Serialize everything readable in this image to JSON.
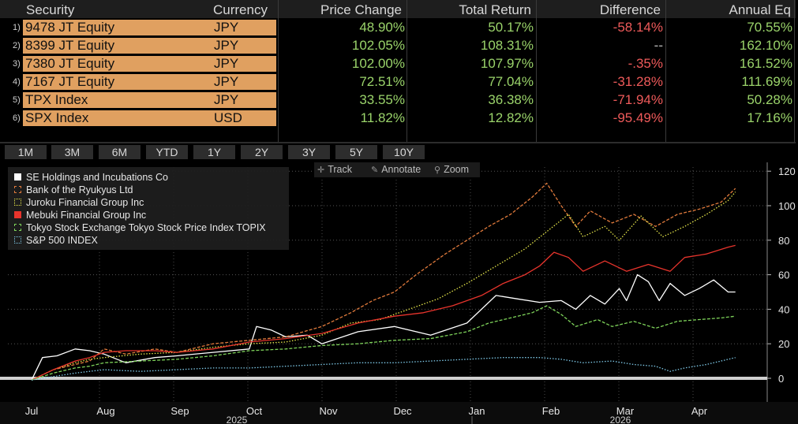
{
  "table": {
    "headers": [
      "Security",
      "Currency",
      "Price Change",
      "Total Return",
      "Difference",
      "Annual Eq"
    ],
    "rows": [
      {
        "num": "1)",
        "security": "9478 JT Equity",
        "currency": "JPY",
        "price_change": "48.90%",
        "total_return": "50.17%",
        "difference": "-58.14%",
        "annual_eq": "70.55%"
      },
      {
        "num": "2)",
        "security": "8399 JT Equity",
        "currency": "JPY",
        "price_change": "102.05%",
        "total_return": "108.31%",
        "difference": "--",
        "annual_eq": "162.10%"
      },
      {
        "num": "3)",
        "security": "7380 JT Equity",
        "currency": "JPY",
        "price_change": "102.00%",
        "total_return": "107.97%",
        "difference": "-.35%",
        "annual_eq": "161.52%"
      },
      {
        "num": "4)",
        "security": "7167 JT Equity",
        "currency": "JPY",
        "price_change": "72.51%",
        "total_return": "77.04%",
        "difference": "-31.28%",
        "annual_eq": "111.69%"
      },
      {
        "num": "5)",
        "security": "TPX Index",
        "currency": "JPY",
        "price_change": "33.55%",
        "total_return": "36.38%",
        "difference": "-71.94%",
        "annual_eq": "50.28%"
      },
      {
        "num": "6)",
        "security": "SPX Index",
        "currency": "USD",
        "price_change": "11.82%",
        "total_return": "12.82%",
        "difference": "-95.49%",
        "annual_eq": "17.16%"
      }
    ]
  },
  "periods": [
    "1M",
    "3M",
    "6M",
    "YTD",
    "1Y",
    "2Y",
    "3Y",
    "5Y",
    "10Y"
  ],
  "toolbar": {
    "track": "Track",
    "annotate": "Annotate",
    "zoom": "Zoom"
  },
  "colors": {
    "accent_orange": "#e0a060",
    "positive": "#9ad36a",
    "negative": "#ee5a5a"
  },
  "chart_data": {
    "type": "line",
    "title": "",
    "xlabel": "",
    "ylabel": "",
    "ylim": [
      -12,
      122
    ],
    "y_ticks": [
      0,
      20,
      40,
      60,
      80,
      100,
      120
    ],
    "x_ticks": [
      "Jul",
      "Aug",
      "Sep",
      "Oct",
      "Nov",
      "Dec",
      "Jan",
      "Feb",
      "Mar",
      "Apr"
    ],
    "year_labels": [
      "2025",
      "2026"
    ],
    "legend_position": "top-left",
    "series": [
      {
        "name": "SE Holdings and Incubations Co",
        "color": "#ffffff",
        "style": "solid",
        "points": [
          [
            0,
            -1
          ],
          [
            0.15,
            12
          ],
          [
            0.35,
            13
          ],
          [
            0.6,
            17
          ],
          [
            0.8,
            16
          ],
          [
            1.0,
            14
          ],
          [
            1.3,
            9
          ],
          [
            1.7,
            12
          ],
          [
            2.0,
            13
          ],
          [
            2.5,
            15
          ],
          [
            3.0,
            17
          ],
          [
            3.1,
            30
          ],
          [
            3.3,
            28
          ],
          [
            3.5,
            24
          ],
          [
            3.8,
            25
          ],
          [
            4.0,
            20
          ],
          [
            4.5,
            27
          ],
          [
            5.0,
            30
          ],
          [
            5.5,
            25
          ],
          [
            6.0,
            32
          ],
          [
            6.2,
            40
          ],
          [
            6.4,
            48
          ],
          [
            6.7,
            46
          ],
          [
            7.0,
            44
          ],
          [
            7.3,
            45
          ],
          [
            7.5,
            40
          ],
          [
            7.7,
            48
          ],
          [
            7.9,
            43
          ],
          [
            8.1,
            52
          ],
          [
            8.2,
            45
          ],
          [
            8.35,
            60
          ],
          [
            8.5,
            56
          ],
          [
            8.65,
            45
          ],
          [
            8.8,
            55
          ],
          [
            9.0,
            48
          ],
          [
            9.2,
            52
          ],
          [
            9.4,
            57
          ],
          [
            9.6,
            50
          ],
          [
            9.7,
            50
          ]
        ]
      },
      {
        "name": "Bank of the Ryukyus Ltd",
        "color": "#e07a3c",
        "style": "dashed",
        "points": [
          [
            0,
            -1
          ],
          [
            0.3,
            5
          ],
          [
            0.6,
            8
          ],
          [
            0.8,
            10
          ],
          [
            1.0,
            17
          ],
          [
            1.3,
            14
          ],
          [
            1.7,
            17
          ],
          [
            2.0,
            15
          ],
          [
            2.5,
            20
          ],
          [
            3.0,
            22
          ],
          [
            3.5,
            24
          ],
          [
            4.0,
            30
          ],
          [
            4.4,
            38
          ],
          [
            4.7,
            45
          ],
          [
            5.0,
            50
          ],
          [
            5.3,
            60
          ],
          [
            5.7,
            72
          ],
          [
            6.0,
            80
          ],
          [
            6.3,
            88
          ],
          [
            6.6,
            95
          ],
          [
            6.9,
            105
          ],
          [
            7.1,
            113
          ],
          [
            7.3,
            100
          ],
          [
            7.5,
            88
          ],
          [
            7.7,
            97
          ],
          [
            8.0,
            90
          ],
          [
            8.3,
            95
          ],
          [
            8.6,
            88
          ],
          [
            8.9,
            95
          ],
          [
            9.2,
            98
          ],
          [
            9.5,
            102
          ],
          [
            9.7,
            110
          ]
        ]
      },
      {
        "name": "Juroku Financial Group Inc",
        "color": "#e6e64a",
        "style": "dotted",
        "points": [
          [
            0,
            -1
          ],
          [
            0.3,
            5
          ],
          [
            0.6,
            9
          ],
          [
            0.8,
            11
          ],
          [
            1.0,
            12
          ],
          [
            1.5,
            14
          ],
          [
            2.0,
            15
          ],
          [
            2.5,
            18
          ],
          [
            3.0,
            20
          ],
          [
            3.5,
            21
          ],
          [
            4.0,
            25
          ],
          [
            4.4,
            32
          ],
          [
            4.8,
            34
          ],
          [
            5.2,
            40
          ],
          [
            5.6,
            46
          ],
          [
            6.0,
            55
          ],
          [
            6.4,
            65
          ],
          [
            6.8,
            75
          ],
          [
            7.1,
            85
          ],
          [
            7.4,
            95
          ],
          [
            7.6,
            82
          ],
          [
            7.9,
            88
          ],
          [
            8.1,
            80
          ],
          [
            8.4,
            94
          ],
          [
            8.7,
            82
          ],
          [
            9.0,
            88
          ],
          [
            9.3,
            95
          ],
          [
            9.6,
            103
          ],
          [
            9.7,
            108
          ]
        ]
      },
      {
        "name": "Mebuki Financial Group Inc",
        "color": "#e8342c",
        "style": "solid",
        "points": [
          [
            0,
            -1
          ],
          [
            0.3,
            5
          ],
          [
            0.6,
            10
          ],
          [
            0.8,
            12
          ],
          [
            1.0,
            15
          ],
          [
            1.3,
            16
          ],
          [
            1.7,
            16
          ],
          [
            2.0,
            15
          ],
          [
            2.5,
            17
          ],
          [
            3.0,
            21
          ],
          [
            3.5,
            23
          ],
          [
            4.0,
            26
          ],
          [
            4.5,
            32
          ],
          [
            5.0,
            36
          ],
          [
            5.4,
            38
          ],
          [
            5.8,
            42
          ],
          [
            6.2,
            48
          ],
          [
            6.5,
            55
          ],
          [
            6.8,
            60
          ],
          [
            7.0,
            65
          ],
          [
            7.2,
            73
          ],
          [
            7.4,
            70
          ],
          [
            7.6,
            62
          ],
          [
            7.9,
            68
          ],
          [
            8.2,
            62
          ],
          [
            8.5,
            66
          ],
          [
            8.8,
            62
          ],
          [
            9.0,
            70
          ],
          [
            9.3,
            72
          ],
          [
            9.6,
            76
          ],
          [
            9.7,
            77
          ]
        ]
      },
      {
        "name": "Tokyo Stock Exchange Tokyo Stock Price Index TOPIX",
        "color": "#7ed35a",
        "style": "dashed",
        "points": [
          [
            0,
            -1
          ],
          [
            0.3,
            3
          ],
          [
            0.6,
            6
          ],
          [
            0.8,
            7
          ],
          [
            1.0,
            9
          ],
          [
            1.5,
            10
          ],
          [
            2.0,
            11
          ],
          [
            2.5,
            13
          ],
          [
            3.0,
            16
          ],
          [
            3.5,
            17
          ],
          [
            4.0,
            19
          ],
          [
            4.5,
            20
          ],
          [
            5.0,
            22
          ],
          [
            5.5,
            23
          ],
          [
            6.0,
            27
          ],
          [
            6.3,
            32
          ],
          [
            6.6,
            35
          ],
          [
            6.9,
            38
          ],
          [
            7.1,
            42
          ],
          [
            7.3,
            37
          ],
          [
            7.5,
            30
          ],
          [
            7.8,
            34
          ],
          [
            8.0,
            30
          ],
          [
            8.3,
            33
          ],
          [
            8.6,
            29
          ],
          [
            8.9,
            33
          ],
          [
            9.2,
            34
          ],
          [
            9.5,
            35
          ],
          [
            9.7,
            36
          ]
        ]
      },
      {
        "name": "S&P 500 INDEX",
        "color": "#7ec9e8",
        "style": "dotted",
        "points": [
          [
            0,
            -1
          ],
          [
            0.3,
            1
          ],
          [
            0.6,
            3
          ],
          [
            0.8,
            4
          ],
          [
            1.0,
            5
          ],
          [
            1.5,
            4
          ],
          [
            2.0,
            5
          ],
          [
            2.5,
            6
          ],
          [
            3.0,
            6
          ],
          [
            3.5,
            7
          ],
          [
            4.0,
            8
          ],
          [
            4.5,
            9
          ],
          [
            5.0,
            9
          ],
          [
            5.5,
            10
          ],
          [
            6.0,
            11
          ],
          [
            6.5,
            12
          ],
          [
            7.0,
            12
          ],
          [
            7.3,
            11
          ],
          [
            7.6,
            9
          ],
          [
            8.0,
            10
          ],
          [
            8.3,
            8
          ],
          [
            8.6,
            7
          ],
          [
            8.8,
            4
          ],
          [
            9.0,
            6
          ],
          [
            9.3,
            8
          ],
          [
            9.5,
            10
          ],
          [
            9.7,
            12
          ]
        ]
      }
    ]
  }
}
